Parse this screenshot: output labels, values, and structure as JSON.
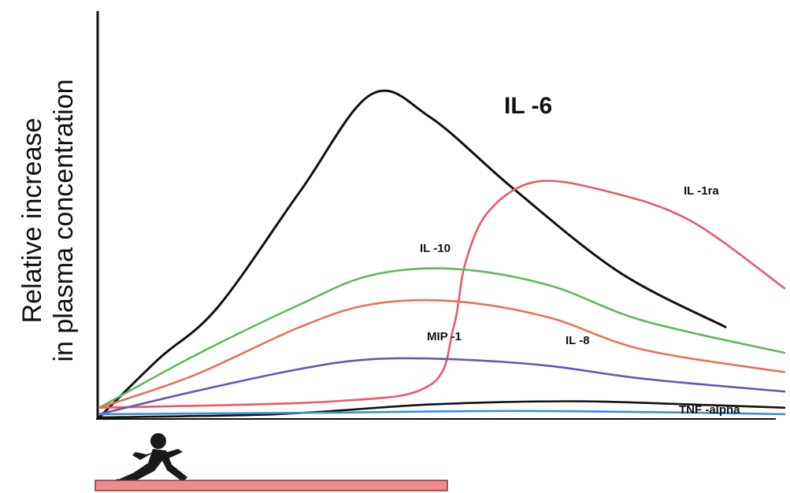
{
  "chart_data": {
    "type": "line",
    "ylabel_line1": "Relative increase",
    "ylabel_line2": "in plasma concentration",
    "xlabel": "",
    "x_ticks": "none",
    "y_ticks": "none",
    "grid": false,
    "legend": "none (series labelled directly on curves)",
    "exercise_bar_color": "#f08a8a",
    "series": [
      {
        "name": "IL -6",
        "color": "#111111",
        "x": [
          0,
          5,
          10,
          17,
          23,
          28,
          35,
          44,
          53
        ],
        "values": [
          0,
          18,
          34,
          70,
          100,
          93,
          71,
          45,
          28
        ]
      },
      {
        "name": "IL -1ra",
        "color": "#e8596a",
        "x": [
          0,
          20,
          28,
          30,
          31,
          33,
          37,
          43,
          50,
          58
        ],
        "values": [
          3,
          5,
          10,
          28,
          48,
          64,
          73,
          70,
          61,
          40
        ]
      },
      {
        "name": "IL -10",
        "color": "#5cb85c",
        "x": [
          0,
          8,
          17,
          23,
          30,
          38,
          46,
          58
        ],
        "values": [
          3,
          19,
          35,
          44,
          46,
          41,
          30,
          20
        ]
      },
      {
        "name": "IL -8",
        "color": "#e8705a",
        "x": [
          0,
          8,
          17,
          23,
          30,
          38,
          46,
          58
        ],
        "values": [
          3,
          13,
          28,
          35,
          36,
          31,
          21,
          14
        ]
      },
      {
        "name": "MIP -1",
        "color": "#6655bb",
        "x": [
          0,
          8,
          17,
          23,
          30,
          38,
          46,
          58
        ],
        "values": [
          1,
          8,
          15,
          18,
          18,
          16,
          12,
          8
        ]
      },
      {
        "name": "TNF -alpha",
        "color": "#111111",
        "x": [
          0,
          15,
          28,
          40,
          50,
          58
        ],
        "values": [
          0,
          1,
          4,
          5,
          4,
          3
        ]
      },
      {
        "name": "",
        "color": "#3a8fd9",
        "x": [
          0,
          20,
          35,
          50,
          58
        ],
        "values": [
          1,
          1.5,
          2,
          1.5,
          1
        ]
      }
    ],
    "annotations": [
      "IL -6",
      "IL -1ra",
      "IL -10",
      "MIP -1",
      "IL -8",
      "TNF -alpha"
    ]
  }
}
